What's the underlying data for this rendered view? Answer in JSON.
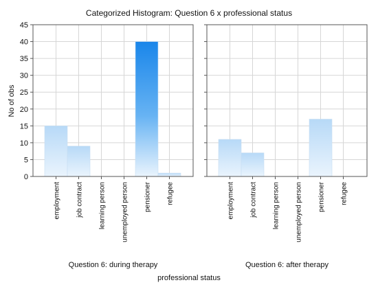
{
  "chart_data": {
    "type": "bar",
    "title": "Categorized Histogram: Question 6 x professional status",
    "xlabel": "professional status",
    "ylabel": "No of obs",
    "ylim": [
      0,
      45
    ],
    "yticks": [
      0,
      5,
      10,
      15,
      20,
      25,
      30,
      35,
      40,
      45
    ],
    "grid": true,
    "categories": [
      "employment",
      "job contract",
      "learning person",
      "unemployed person",
      "pensioner",
      "refugee"
    ],
    "panels": [
      {
        "name": "Question 6:  during therapy",
        "values": [
          15,
          9,
          0,
          0,
          40,
          1
        ]
      },
      {
        "name": "Question 6:  after therapy",
        "values": [
          11,
          7,
          0,
          0,
          17,
          0
        ]
      }
    ]
  },
  "colors": {
    "bar_top_light": "#b7d9f7",
    "bar_bottom": "#eaf4fd",
    "bar_top_strong": "#1a86ea",
    "bar_mid_strong": "#67b3f3",
    "bar_stroke": "#c9def2",
    "grid": "#d6d6d6",
    "frame": "#555555"
  }
}
